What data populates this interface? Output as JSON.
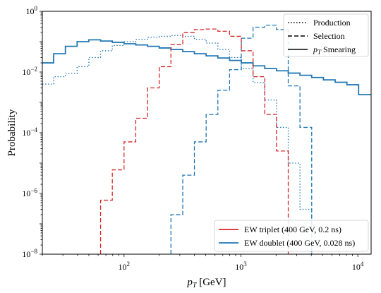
{
  "chart_data": {
    "type": "line",
    "xlabel": "p_T [GeV]",
    "ylabel": "Probability",
    "xscale": "log",
    "yscale": "log",
    "xlim": [
      20,
      13000
    ],
    "ylim": [
      1e-08,
      1
    ],
    "x_ticks": [
      {
        "value": 100,
        "base": "10",
        "exp": "2"
      },
      {
        "value": 1000,
        "base": "10",
        "exp": "3"
      },
      {
        "value": 10000,
        "base": "10",
        "exp": "4"
      }
    ],
    "y_ticks": [
      {
        "value": 1e-08,
        "base": "10",
        "exp": "−8"
      },
      {
        "value": 1e-06,
        "base": "10",
        "exp": "−6"
      },
      {
        "value": 0.0001,
        "base": "10",
        "exp": "−4"
      },
      {
        "value": 0.01,
        "base": "10",
        "exp": "−2"
      },
      {
        "value": 1,
        "base": "10",
        "exp": "0"
      }
    ],
    "grid": false,
    "legend_styles": {
      "position": "upper-right",
      "items": [
        {
          "label": "Production",
          "dash": "dotted"
        },
        {
          "label": "Selection",
          "dash": "dashed"
        },
        {
          "label_prefix": "p",
          "label_sub": "T",
          "label_suffix": " Smearing",
          "dash": "solid"
        }
      ]
    },
    "legend_models": {
      "position": "lower-right",
      "items": [
        {
          "label": "EW triplet (400 GeV, 0.2 ns)",
          "color": "#d62728"
        },
        {
          "label": "EW doublet (400 GeV, 0.028 ns)",
          "color": "#1f77b4"
        }
      ]
    },
    "series": [
      {
        "model": "EW doublet (400 GeV, 0.028 ns)",
        "style": "solid",
        "color": "#1f77b4",
        "points": [
          [
            20,
            0.02
          ],
          [
            25,
            0.02
          ],
          [
            25,
            0.04
          ],
          [
            31.5,
            0.04
          ],
          [
            31.5,
            0.07
          ],
          [
            39.7,
            0.07
          ],
          [
            39.7,
            0.1
          ],
          [
            50,
            0.1
          ],
          [
            50,
            0.115
          ],
          [
            63,
            0.115
          ],
          [
            63,
            0.105
          ],
          [
            79.4,
            0.105
          ],
          [
            79.4,
            0.095
          ],
          [
            100,
            0.095
          ],
          [
            100,
            0.085
          ],
          [
            126,
            0.085
          ],
          [
            126,
            0.078
          ],
          [
            159,
            0.078
          ],
          [
            159,
            0.07
          ],
          [
            200,
            0.07
          ],
          [
            200,
            0.062
          ],
          [
            252,
            0.062
          ],
          [
            252,
            0.055
          ],
          [
            318,
            0.055
          ],
          [
            318,
            0.047
          ],
          [
            400,
            0.047
          ],
          [
            400,
            0.04
          ],
          [
            504,
            0.04
          ],
          [
            504,
            0.034
          ],
          [
            635,
            0.034
          ],
          [
            635,
            0.029
          ],
          [
            800,
            0.029
          ],
          [
            800,
            0.024
          ],
          [
            1008,
            0.024
          ],
          [
            1008,
            0.02
          ],
          [
            1270,
            0.02
          ],
          [
            1270,
            0.016
          ],
          [
            1600,
            0.016
          ],
          [
            1600,
            0.013
          ],
          [
            2016,
            0.013
          ],
          [
            2016,
            0.011
          ],
          [
            2540,
            0.011
          ],
          [
            2540,
            0.0092
          ],
          [
            3200,
            0.0092
          ],
          [
            3200,
            0.0078
          ],
          [
            4032,
            0.0078
          ],
          [
            4032,
            0.0066
          ],
          [
            5080,
            0.0066
          ],
          [
            5080,
            0.0055
          ],
          [
            6400,
            0.0055
          ],
          [
            6400,
            0.0046
          ],
          [
            8064,
            0.0046
          ],
          [
            8064,
            0.0038
          ],
          [
            10160,
            0.0038
          ],
          [
            10160,
            0.0018
          ],
          [
            13000,
            0.0018
          ]
        ]
      },
      {
        "model": "EW doublet (400 GeV, 0.028 ns)",
        "style": "dotted",
        "color": "#1f77b4",
        "points": [
          [
            20,
            0.004
          ],
          [
            25,
            0.004
          ],
          [
            25,
            0.007
          ],
          [
            31.5,
            0.007
          ],
          [
            31.5,
            0.009
          ],
          [
            39.7,
            0.009
          ],
          [
            39.7,
            0.015
          ],
          [
            50,
            0.015
          ],
          [
            50,
            0.03
          ],
          [
            63,
            0.03
          ],
          [
            63,
            0.05
          ],
          [
            79.4,
            0.05
          ],
          [
            79.4,
            0.075
          ],
          [
            100,
            0.075
          ],
          [
            100,
            0.1
          ],
          [
            126,
            0.1
          ],
          [
            126,
            0.12
          ],
          [
            159,
            0.12
          ],
          [
            159,
            0.14
          ],
          [
            200,
            0.14
          ],
          [
            200,
            0.15
          ],
          [
            252,
            0.15
          ],
          [
            252,
            0.16
          ],
          [
            318,
            0.16
          ],
          [
            318,
            0.15
          ],
          [
            400,
            0.15
          ],
          [
            400,
            0.12
          ],
          [
            504,
            0.12
          ],
          [
            504,
            0.09
          ],
          [
            635,
            0.09
          ],
          [
            635,
            0.055
          ],
          [
            800,
            0.055
          ],
          [
            800,
            0.03
          ],
          [
            1008,
            0.03
          ],
          [
            1008,
            0.013
          ],
          [
            1270,
            0.013
          ],
          [
            1270,
            0.0045
          ],
          [
            1600,
            0.0045
          ],
          [
            1600,
            0.0012
          ],
          [
            2016,
            0.0012
          ],
          [
            2016,
            0.00015
          ],
          [
            2540,
            0.00015
          ],
          [
            2540,
            1e-05
          ],
          [
            3200,
            1e-05
          ],
          [
            3200,
            3e-07
          ],
          [
            4032,
            3e-07
          ],
          [
            4032,
            1e-08
          ]
        ]
      },
      {
        "model": "EW doublet (400 GeV, 0.028 ns)",
        "style": "dashed",
        "color": "#1f77b4",
        "points": [
          [
            252,
            1e-08
          ],
          [
            252,
            2e-07
          ],
          [
            318,
            2e-07
          ],
          [
            318,
            4e-06
          ],
          [
            400,
            4e-06
          ],
          [
            400,
            5e-05
          ],
          [
            504,
            5e-05
          ],
          [
            504,
            0.0004
          ],
          [
            635,
            0.0004
          ],
          [
            635,
            0.0025
          ],
          [
            800,
            0.0025
          ],
          [
            800,
            0.012
          ],
          [
            1008,
            0.012
          ],
          [
            1008,
            0.13
          ],
          [
            1270,
            0.13
          ],
          [
            1270,
            0.3
          ],
          [
            1600,
            0.3
          ],
          [
            1600,
            0.35
          ],
          [
            2016,
            0.35
          ],
          [
            2016,
            0.25
          ],
          [
            2540,
            0.25
          ],
          [
            2540,
            0.0035
          ],
          [
            3200,
            0.0035
          ],
          [
            3200,
            0.00015
          ],
          [
            4032,
            0.00015
          ],
          [
            4032,
            1e-08
          ]
        ]
      },
      {
        "model": "EW triplet (400 GeV, 0.2 ns)",
        "style": "dashed",
        "color": "#d62728",
        "points": [
          [
            63,
            1e-08
          ],
          [
            63,
            6e-07
          ],
          [
            79.4,
            6e-07
          ],
          [
            79.4,
            6e-06
          ],
          [
            100,
            6e-06
          ],
          [
            100,
            5e-05
          ],
          [
            126,
            5e-05
          ],
          [
            126,
            0.0003
          ],
          [
            159,
            0.0003
          ],
          [
            159,
            0.003
          ],
          [
            200,
            0.003
          ],
          [
            200,
            0.015
          ],
          [
            252,
            0.015
          ],
          [
            252,
            0.08
          ],
          [
            318,
            0.08
          ],
          [
            318,
            0.2
          ],
          [
            400,
            0.2
          ],
          [
            400,
            0.25
          ],
          [
            504,
            0.25
          ],
          [
            504,
            0.26
          ],
          [
            635,
            0.26
          ],
          [
            635,
            0.22
          ],
          [
            800,
            0.22
          ],
          [
            800,
            0.15
          ],
          [
            1008,
            0.15
          ],
          [
            1008,
            0.05
          ],
          [
            1270,
            0.05
          ],
          [
            1270,
            0.007
          ],
          [
            1600,
            0.007
          ],
          [
            1600,
            0.0004
          ],
          [
            2016,
            0.0004
          ],
          [
            2016,
            2.5e-05
          ],
          [
            2540,
            2.5e-05
          ],
          [
            2540,
            1e-08
          ]
        ]
      }
    ]
  }
}
